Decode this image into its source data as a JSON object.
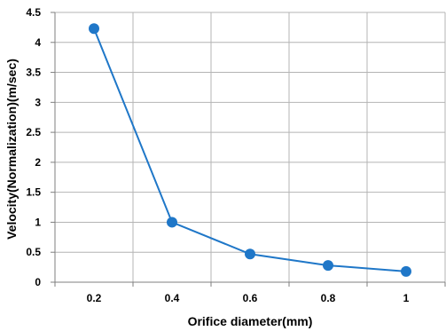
{
  "chart_data": {
    "type": "line",
    "title": "",
    "xlabel": "Orifice diameter(mm)",
    "ylabel": "Velocity(Normalization)(m/sec)",
    "categories": [
      "0.2",
      "0.4",
      "0.6",
      "0.8",
      "1"
    ],
    "series": [
      {
        "values": [
          4.23,
          1.0,
          0.47,
          0.28,
          0.18
        ],
        "color": "#1f77c8"
      }
    ],
    "ylim": [
      0,
      4.5
    ],
    "y_ticks": [
      "0",
      "0.5",
      "1",
      "1.5",
      "2",
      "2.5",
      "3",
      "3.5",
      "4",
      "4.5"
    ],
    "grid": true,
    "legend": "none",
    "colors": {
      "series": "#1f77c8",
      "grid": "#b4b4b4",
      "axis": "#7f7f7f"
    }
  }
}
